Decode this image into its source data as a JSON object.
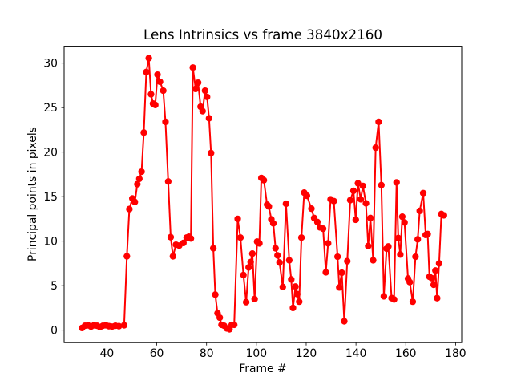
{
  "chart_data": {
    "type": "line",
    "title": "Lens Intrinsics vs frame 3840x2160",
    "xlabel": "Frame #",
    "ylabel": "Principal points in pixels",
    "line_color": "#ff0000",
    "marker": "o",
    "legend": null,
    "grid": false,
    "xlim": [
      22.8,
      182.45
    ],
    "ylim": [
      -1.4,
      31.9
    ],
    "xticks": [
      40,
      60,
      80,
      100,
      120,
      140,
      160,
      180
    ],
    "yticks": [
      0,
      5,
      10,
      15,
      20,
      25,
      30
    ],
    "x": [
      30.0,
      31.2,
      32.4,
      33.6,
      34.8,
      36.0,
      37.2,
      38.4,
      39.6,
      40.8,
      42.0,
      43.4,
      44.8,
      46.9,
      48.0,
      49.0,
      50.2,
      51.2,
      52.2,
      53.0,
      53.9,
      54.8,
      55.8,
      56.8,
      57.7,
      58.5,
      59.4,
      60.3,
      61.3,
      62.6,
      63.5,
      64.6,
      65.6,
      66.5,
      67.7,
      69.0,
      70.7,
      72.0,
      72.9,
      73.7,
      74.5,
      75.6,
      76.6,
      77.6,
      78.4,
      79.4,
      80.2,
      81.0,
      81.8,
      82.7,
      83.5,
      84.4,
      85.3,
      86.0,
      87.0,
      88.1,
      89.2,
      90.1,
      91.1,
      92.5,
      93.6,
      94.8,
      95.9,
      96.9,
      97.7,
      98.4,
      99.3,
      100.3,
      101.2,
      102.0,
      103.0,
      104.3,
      105.0,
      106.0,
      106.8,
      107.7,
      108.5,
      109.3,
      110.6,
      111.9,
      113.2,
      114.0,
      114.7,
      115.7,
      116.4,
      117.2,
      118.1,
      119.2,
      120.3,
      122.1,
      123.2,
      124.5,
      125.5,
      126.8,
      127.9,
      128.8,
      129.8,
      131.1,
      132.6,
      133.3,
      134.3,
      135.3,
      136.5,
      137.7,
      139.0,
      139.9,
      140.8,
      141.9,
      142.8,
      144.0,
      144.9,
      145.8,
      146.9,
      147.9,
      149.1,
      150.2,
      151.2,
      152.3,
      153.0,
      154.3,
      155.3,
      156.3,
      157.0,
      157.8,
      158.6,
      159.5,
      160.9,
      161.6,
      162.8,
      163.9,
      164.8,
      165.6,
      167.0,
      168.0,
      168.8,
      169.5,
      170.4,
      171.2,
      171.9,
      172.6,
      173.4,
      174.3,
      175.3
    ],
    "y": [
      0.25,
      0.5,
      0.55,
      0.4,
      0.55,
      0.5,
      0.35,
      0.5,
      0.55,
      0.45,
      0.4,
      0.5,
      0.45,
      0.55,
      8.3,
      13.6,
      14.8,
      14.4,
      16.4,
      17.0,
      17.8,
      22.2,
      29.0,
      30.55,
      26.5,
      25.45,
      25.3,
      28.7,
      27.9,
      26.9,
      23.4,
      16.7,
      10.45,
      8.3,
      9.6,
      9.5,
      9.8,
      10.4,
      10.5,
      10.3,
      29.5,
      27.1,
      27.8,
      25.1,
      24.6,
      26.9,
      26.2,
      23.8,
      19.9,
      9.2,
      4.0,
      1.9,
      1.4,
      0.6,
      0.5,
      0.2,
      0.1,
      0.6,
      0.6,
      12.5,
      10.4,
      6.2,
      3.15,
      7.05,
      7.65,
      8.6,
      3.5,
      9.95,
      9.75,
      17.1,
      16.85,
      14.1,
      13.9,
      12.45,
      12.0,
      9.2,
      8.4,
      7.6,
      4.85,
      14.2,
      7.85,
      5.7,
      2.5,
      4.9,
      4.05,
      3.2,
      10.4,
      15.45,
      15.1,
      13.65,
      12.6,
      12.15,
      11.55,
      11.4,
      6.5,
      9.75,
      14.7,
      14.5,
      8.25,
      4.8,
      6.45,
      1.0,
      7.75,
      14.6,
      15.65,
      12.4,
      16.5,
      14.7,
      16.2,
      14.25,
      9.45,
      12.6,
      7.85,
      20.5,
      23.4,
      16.3,
      3.8,
      9.15,
      9.4,
      3.6,
      3.45,
      16.6,
      10.35,
      8.5,
      12.75,
      12.1,
      5.8,
      5.4,
      3.2,
      8.25,
      10.2,
      13.4,
      15.4,
      10.7,
      10.8,
      6.0,
      5.85,
      5.1,
      6.7,
      3.6,
      7.5,
      13.05,
      12.9
    ]
  }
}
